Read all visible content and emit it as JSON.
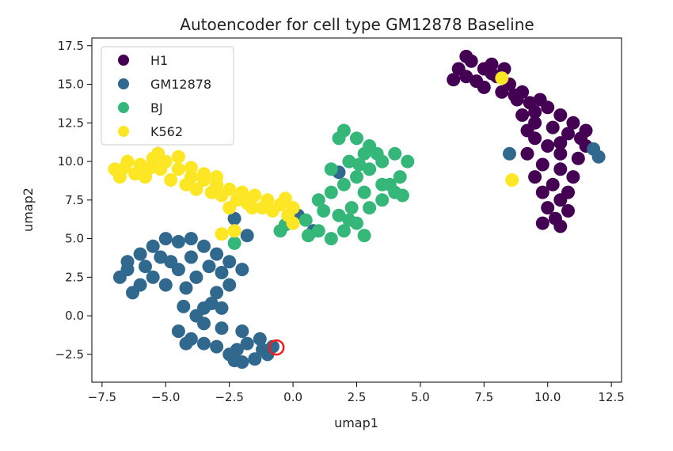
{
  "chart_data": {
    "type": "scatter",
    "title": "Autoencoder for cell type GM12878 Baseline",
    "xlabel": "umap1",
    "ylabel": "umap2",
    "xlim": [
      -7.9,
      12.9
    ],
    "ylim": [
      -4.3,
      18.0
    ],
    "xticks": [
      -7.5,
      -5.0,
      -2.5,
      0.0,
      2.5,
      5.0,
      7.5,
      10.0,
      12.5
    ],
    "xtick_labels": [
      "−7.5",
      "−5.0",
      "−2.5",
      "0.0",
      "2.5",
      "5.0",
      "7.5",
      "10.0",
      "12.5"
    ],
    "yticks": [
      -2.5,
      0.0,
      2.5,
      5.0,
      7.5,
      10.0,
      12.5,
      15.0,
      17.5
    ],
    "ytick_labels": [
      "−2.5",
      "0.0",
      "2.5",
      "5.0",
      "7.5",
      "10.0",
      "12.5",
      "15.0",
      "17.5"
    ],
    "grid": false,
    "legend_position": "top-left",
    "series": [
      {
        "name": "H1",
        "color": "#440154",
        "points": [
          [
            6.5,
            16.0
          ],
          [
            7.0,
            16.5
          ],
          [
            7.5,
            16.0
          ],
          [
            6.8,
            15.5
          ],
          [
            7.2,
            15.2
          ],
          [
            8.0,
            15.5
          ],
          [
            8.5,
            15.0
          ],
          [
            7.5,
            14.8
          ],
          [
            8.2,
            14.5
          ],
          [
            9.0,
            14.5
          ],
          [
            8.8,
            14.0
          ],
          [
            9.3,
            13.8
          ],
          [
            9.5,
            13.2
          ],
          [
            10.0,
            13.5
          ],
          [
            10.5,
            13.0
          ],
          [
            9.0,
            13.0
          ],
          [
            9.5,
            12.5
          ],
          [
            10.2,
            12.2
          ],
          [
            11.0,
            12.5
          ],
          [
            10.8,
            11.8
          ],
          [
            11.3,
            11.5
          ],
          [
            9.5,
            11.5
          ],
          [
            10.0,
            11.0
          ],
          [
            9.2,
            10.5
          ],
          [
            10.5,
            10.5
          ],
          [
            11.2,
            10.2
          ],
          [
            11.5,
            11.0
          ],
          [
            9.8,
            9.8
          ],
          [
            10.5,
            9.5
          ],
          [
            11.0,
            9.0
          ],
          [
            9.5,
            9.0
          ],
          [
            10.2,
            8.5
          ],
          [
            10.8,
            8.0
          ],
          [
            9.8,
            8.0
          ],
          [
            10.5,
            7.5
          ],
          [
            10.0,
            7.0
          ],
          [
            10.8,
            6.8
          ],
          [
            10.3,
            6.3
          ],
          [
            9.8,
            6.0
          ],
          [
            10.5,
            5.8
          ],
          [
            6.8,
            16.8
          ],
          [
            7.8,
            16.3
          ],
          [
            8.3,
            16.0
          ],
          [
            6.3,
            15.3
          ],
          [
            7.8,
            15.7
          ],
          [
            8.7,
            14.3
          ],
          [
            9.7,
            14.0
          ],
          [
            11.5,
            12.0
          ],
          [
            10.5,
            11.2
          ],
          [
            9.2,
            12.0
          ]
        ]
      },
      {
        "name": "GM12878",
        "color": "#31688e",
        "points": [
          [
            -6.8,
            2.5
          ],
          [
            -6.5,
            3.5
          ],
          [
            -6.0,
            4.0
          ],
          [
            -5.5,
            4.5
          ],
          [
            -5.0,
            5.0
          ],
          [
            -4.5,
            4.8
          ],
          [
            -4.0,
            5.0
          ],
          [
            -3.5,
            4.5
          ],
          [
            -3.0,
            4.0
          ],
          [
            -2.5,
            3.5
          ],
          [
            -2.0,
            3.0
          ],
          [
            -2.5,
            2.0
          ],
          [
            -3.0,
            1.5
          ],
          [
            -3.5,
            0.5
          ],
          [
            -3.8,
            2.5
          ],
          [
            -4.2,
            1.8
          ],
          [
            -4.5,
            3.0
          ],
          [
            -5.0,
            2.0
          ],
          [
            -5.5,
            2.5
          ],
          [
            -6.0,
            2.0
          ],
          [
            -6.3,
            1.5
          ],
          [
            -6.5,
            3.0
          ],
          [
            -5.8,
            3.2
          ],
          [
            -5.2,
            3.8
          ],
          [
            -4.8,
            3.5
          ],
          [
            -4.0,
            3.8
          ],
          [
            -3.3,
            3.2
          ],
          [
            -2.8,
            2.8
          ],
          [
            -3.2,
            0.8
          ],
          [
            -2.8,
            0.5
          ],
          [
            -4.5,
            -1.0
          ],
          [
            -4.0,
            -1.5
          ],
          [
            -3.5,
            -1.8
          ],
          [
            -3.0,
            -2.0
          ],
          [
            -2.5,
            -2.5
          ],
          [
            -2.0,
            -3.0
          ],
          [
            -1.5,
            -2.8
          ],
          [
            -1.0,
            -2.5
          ],
          [
            -0.8,
            -2.0
          ],
          [
            -1.3,
            -1.5
          ],
          [
            -2.0,
            -1.0
          ],
          [
            -2.8,
            -0.8
          ],
          [
            -3.5,
            -0.5
          ],
          [
            -4.2,
            -1.8
          ],
          [
            -2.2,
            -2.2
          ],
          [
            -1.8,
            -1.8
          ],
          [
            -3.8,
            0.0
          ],
          [
            -4.3,
            0.6
          ],
          [
            -2.3,
            -2.9
          ],
          [
            -1.2,
            -2.2
          ],
          [
            8.5,
            10.5
          ],
          [
            11.8,
            10.8
          ],
          [
            12.0,
            10.3
          ],
          [
            1.8,
            9.3
          ],
          [
            0.8,
            5.5
          ],
          [
            0.2,
            6.5
          ],
          [
            -1.8,
            5.2
          ],
          [
            -2.3,
            6.3
          ],
          [
            -5.3,
            10.5
          ]
        ]
      },
      {
        "name": "BJ",
        "color": "#35b779",
        "points": [
          [
            -0.5,
            5.5
          ],
          [
            0.0,
            6.0
          ],
          [
            0.5,
            6.2
          ],
          [
            1.0,
            7.5
          ],
          [
            1.5,
            8.0
          ],
          [
            2.0,
            8.5
          ],
          [
            2.5,
            9.0
          ],
          [
            3.0,
            9.5
          ],
          [
            3.5,
            10.0
          ],
          [
            4.0,
            10.5
          ],
          [
            4.5,
            10.0
          ],
          [
            4.2,
            9.0
          ],
          [
            3.8,
            8.5
          ],
          [
            3.5,
            7.5
          ],
          [
            3.0,
            7.0
          ],
          [
            2.5,
            6.0
          ],
          [
            2.0,
            5.5
          ],
          [
            1.5,
            5.0
          ],
          [
            1.0,
            5.5
          ],
          [
            2.0,
            12.0
          ],
          [
            2.5,
            11.5
          ],
          [
            3.0,
            11.0
          ],
          [
            2.8,
            10.5
          ],
          [
            2.2,
            10.0
          ],
          [
            1.5,
            9.5
          ],
          [
            3.5,
            8.5
          ],
          [
            4.0,
            8.0
          ],
          [
            2.8,
            8.0
          ],
          [
            2.3,
            7.0
          ],
          [
            1.8,
            6.5
          ],
          [
            0.6,
            5.2
          ],
          [
            2.8,
            5.2
          ],
          [
            4.3,
            7.8
          ],
          [
            3.3,
            10.5
          ],
          [
            1.8,
            11.5
          ],
          [
            2.2,
            6.2
          ],
          [
            -2.3,
            4.7
          ],
          [
            -0.3,
            5.9
          ],
          [
            1.2,
            6.8
          ],
          [
            2.6,
            9.8
          ]
        ]
      },
      {
        "name": "K562",
        "color": "#fde725",
        "points": [
          [
            -7.0,
            9.5
          ],
          [
            -6.5,
            10.0
          ],
          [
            -6.0,
            9.8
          ],
          [
            -5.5,
            10.2
          ],
          [
            -5.0,
            10.0
          ],
          [
            -4.5,
            9.5
          ],
          [
            -4.0,
            9.0
          ],
          [
            -3.5,
            8.8
          ],
          [
            -3.0,
            8.5
          ],
          [
            -2.5,
            8.2
          ],
          [
            -2.0,
            8.0
          ],
          [
            -1.5,
            7.8
          ],
          [
            -1.0,
            7.5
          ],
          [
            -0.5,
            7.2
          ],
          [
            0.0,
            7.0
          ],
          [
            -6.8,
            9.0
          ],
          [
            -6.2,
            9.2
          ],
          [
            -5.8,
            9.0
          ],
          [
            -5.2,
            9.5
          ],
          [
            -4.8,
            8.8
          ],
          [
            -4.2,
            8.5
          ],
          [
            -3.8,
            8.2
          ],
          [
            -3.2,
            8.0
          ],
          [
            -2.8,
            7.8
          ],
          [
            -2.2,
            7.5
          ],
          [
            -1.8,
            7.3
          ],
          [
            -1.2,
            7.0
          ],
          [
            -0.8,
            6.8
          ],
          [
            -3.5,
            9.2
          ],
          [
            -4.5,
            10.3
          ],
          [
            -5.3,
            10.5
          ],
          [
            -2.5,
            7.0
          ],
          [
            -2.3,
            5.5
          ],
          [
            -2.8,
            5.3
          ],
          [
            0.0,
            6.0
          ],
          [
            -0.2,
            6.5
          ],
          [
            8.2,
            15.4
          ],
          [
            8.6,
            8.8
          ],
          [
            -6.6,
            9.6
          ],
          [
            -5.6,
            9.6
          ],
          [
            -4.0,
            9.6
          ],
          [
            -3.0,
            9.0
          ],
          [
            -1.6,
            7.0
          ],
          [
            -0.3,
            7.6
          ]
        ]
      }
    ],
    "annotation": {
      "marker": "red-circle",
      "x": -0.65,
      "y": -2.05,
      "color": "#ff1a1a"
    }
  }
}
